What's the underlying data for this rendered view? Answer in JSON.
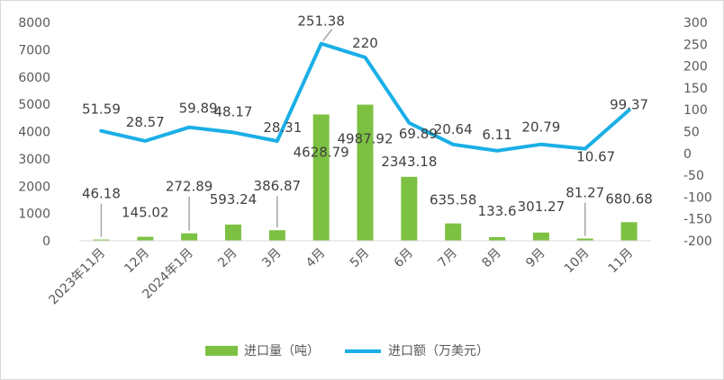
{
  "chart_data": {
    "type": "bar+line",
    "categories": [
      "2023年11月",
      "12月",
      "2024年1月",
      "2月",
      "3月",
      "4月",
      "5月",
      "6月",
      "7月",
      "8月",
      "9月",
      "10月",
      "11月"
    ],
    "series": [
      {
        "name": "进口量（吨）",
        "type": "bar",
        "axis": "left",
        "color": "#7dc143",
        "values": [
          46.18,
          145.02,
          272.89,
          593.24,
          386.87,
          4628.79,
          4987.92,
          2343.18,
          635.58,
          133.6,
          301.27,
          81.27,
          680.68
        ],
        "labels": [
          "46.18",
          "145.02",
          "272.89",
          "593.24",
          "386.87",
          "4628.79",
          "4987.92",
          "2343.18",
          "635.58",
          "133.6",
          "301.27",
          "81.27",
          "680.68"
        ]
      },
      {
        "name": "进口额（万美元）",
        "type": "line",
        "axis": "right",
        "color": "#1aafe6",
        "values": [
          51.59,
          28.57,
          59.89,
          48.17,
          28.31,
          251.38,
          220,
          69.89,
          20.64,
          6.11,
          20.79,
          10.67,
          99.37
        ],
        "labels": [
          "51.59",
          "28.57",
          "59.89",
          "48.17",
          "28.31",
          "251.38",
          "220",
          "69.89",
          "20.64",
          "6.11",
          "20.79",
          "10.67",
          "99.37"
        ]
      }
    ],
    "y_left": {
      "min": 0,
      "max": 8000,
      "ticks": [
        "0",
        "1000",
        "2000",
        "3000",
        "4000",
        "5000",
        "6000",
        "7000",
        "8000"
      ]
    },
    "y_right": {
      "min": -200,
      "max": 300,
      "ticks": [
        "-200",
        "-150",
        "-100",
        "-50",
        "0",
        "50",
        "100",
        "150",
        "200",
        "250",
        "300"
      ]
    },
    "grid": false,
    "legend_position": "bottom"
  }
}
